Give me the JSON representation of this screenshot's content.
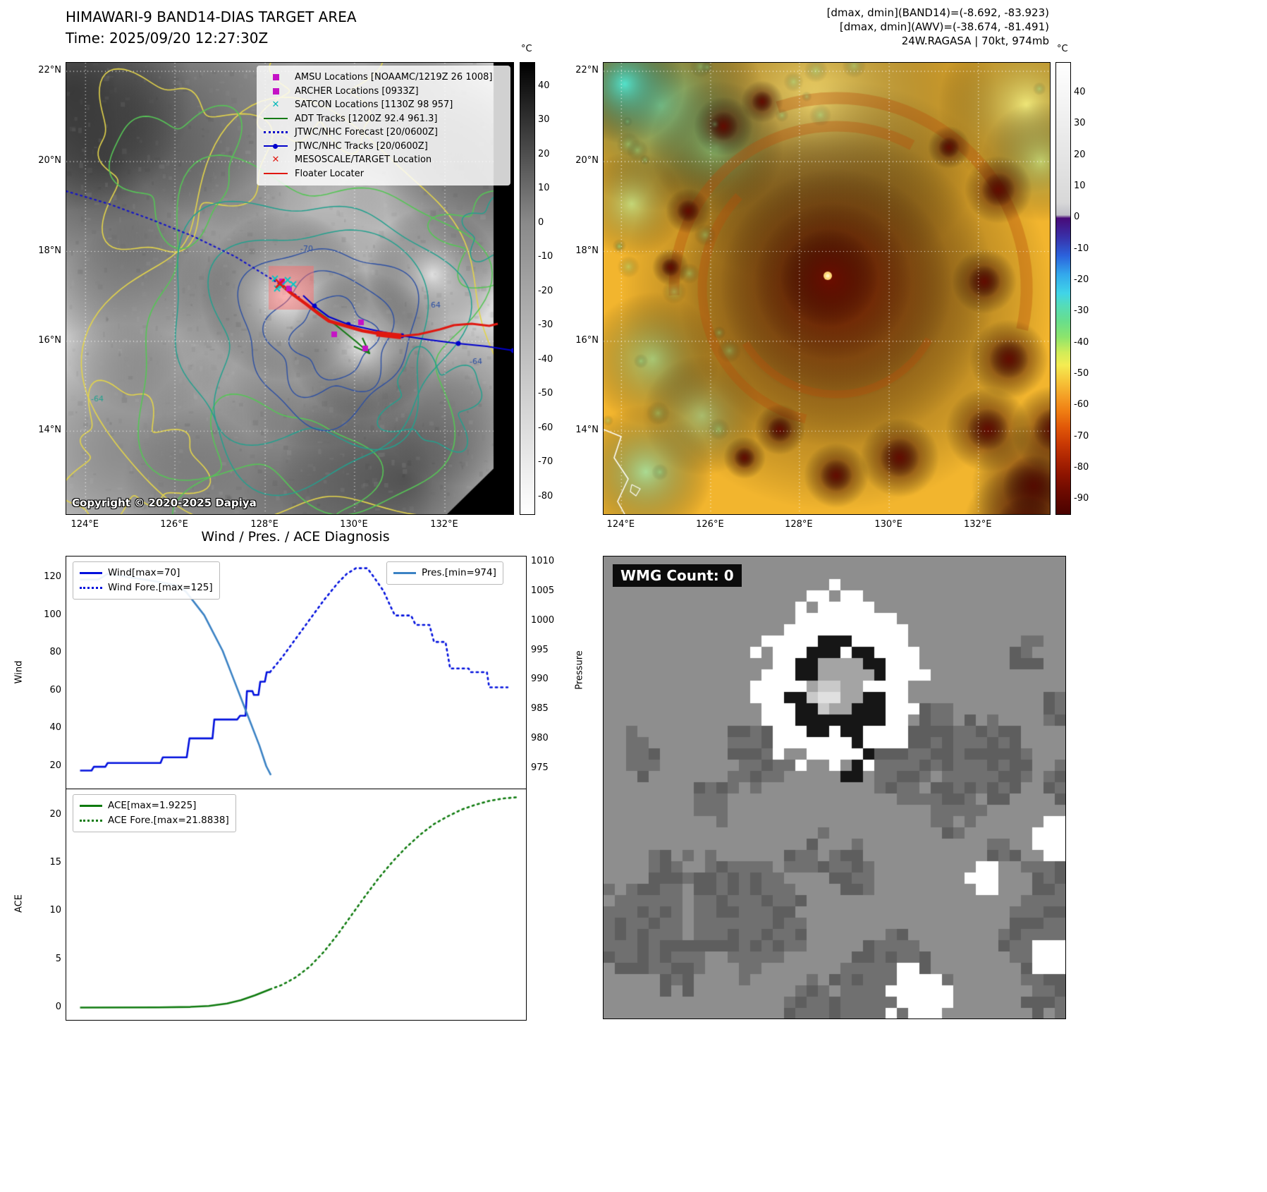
{
  "band14": {
    "title": "HIMAWARI-9 BAND14-DIAS TARGET AREA",
    "time_label": "Time: 2025/09/20 12:27:30Z",
    "copyright": "Copyright © 2020-2025 Dapiya",
    "colorbar": {
      "unit": "°C",
      "vmax": 47,
      "vmin": -85,
      "ticks": [
        40,
        30,
        20,
        10,
        0,
        -10,
        -20,
        -30,
        -40,
        -50,
        -60,
        -70,
        -80
      ],
      "stops": [
        [
          47,
          "#000000"
        ],
        [
          0,
          "#8a8a8a"
        ],
        [
          -85,
          "#ffffff"
        ]
      ]
    },
    "lat_labels": [
      "22°N",
      "20°N",
      "18°N",
      "16°N",
      "14°N"
    ],
    "lon_labels": [
      "124°E",
      "126°E",
      "128°E",
      "130°E",
      "132°E"
    ],
    "legend_items": [
      {
        "label": "AMSU Locations [NOAAMC/1219Z 26 1008]",
        "marker": "square",
        "color": "#c513c5"
      },
      {
        "label": "ARCHER Locations [0933Z]",
        "marker": "square",
        "color": "#c513c5"
      },
      {
        "label": "SATCON Locations [1130Z 98 957]",
        "marker": "x",
        "color": "#00b8b8"
      },
      {
        "label": "ADT Tracks [1200Z 92.4 961.3]",
        "marker": "line",
        "color": "#157a15"
      },
      {
        "label": "JTWC/NHC Forecast [20/0600Z]",
        "marker": "dotted-line",
        "color": "#0000cc"
      },
      {
        "label": "JTWC/NHC Tracks [20/0600Z]",
        "marker": "line-marker",
        "color": "#0000cc"
      },
      {
        "label": "MESOSCALE/TARGET Location",
        "marker": "x",
        "color": "#e01810"
      },
      {
        "label": "Floater Locater",
        "marker": "line",
        "color": "#e01810"
      }
    ],
    "contour_labels": [
      "-70",
      "64",
      "-64",
      "-64"
    ]
  },
  "awv": {
    "header_lines": [
      "[dmax, dmin](BAND14)=(-8.692, -83.923)",
      "[dmax, dmin](AWV)=(-38.674, -81.491)",
      "24W.RAGASA | 70kt, 974mb"
    ],
    "colorbar": {
      "unit": "°C",
      "vmax": 49.7,
      "vmin": -94.7,
      "ticks": [
        40,
        30,
        20,
        10,
        0,
        -10,
        -20,
        -30,
        -40,
        -50,
        -60,
        -70,
        -80,
        -90
      ],
      "stops": [
        [
          49.7,
          "#ffffff"
        ],
        [
          5,
          "#d8d8d8"
        ],
        [
          1,
          "#c0c0c8"
        ],
        [
          0,
          "#480a78"
        ],
        [
          -6,
          "#3930a8"
        ],
        [
          -12,
          "#2b62dc"
        ],
        [
          -18,
          "#33a8ec"
        ],
        [
          -24,
          "#40d4e8"
        ],
        [
          -28,
          "#55dcb8"
        ],
        [
          -33,
          "#68de8c"
        ],
        [
          -38,
          "#8ce46c"
        ],
        [
          -43,
          "#d2ec58"
        ],
        [
          -47,
          "#f4ec52"
        ],
        [
          -52,
          "#f6c63a"
        ],
        [
          -57,
          "#f4a026"
        ],
        [
          -62,
          "#ef7c12"
        ],
        [
          -67,
          "#e05708"
        ],
        [
          -72,
          "#ca3a04"
        ],
        [
          -77,
          "#ad2502"
        ],
        [
          -82,
          "#8e1400"
        ],
        [
          -87,
          "#700b00"
        ],
        [
          -92,
          "#570500"
        ],
        [
          -94.7,
          "#4b0300"
        ]
      ]
    },
    "lat_labels": [
      "22°N",
      "20°N",
      "18°N",
      "16°N",
      "14°N"
    ],
    "lon_labels": [
      "124°E",
      "126°E",
      "128°E",
      "130°E",
      "132°E"
    ]
  },
  "diagnosis": {
    "title": "Wind / Pres. / ACE Diagnosis"
  },
  "wmg": {
    "count_label": "WMG Count: 0"
  },
  "colors": {
    "wind": "#0010dd",
    "pressure": "#3b82c4",
    "ace": "#0e7a0e",
    "forecast_track": "#1515c8",
    "track": "#0000cc",
    "floater": "#e01810",
    "adt": "#157a15",
    "amsu": "#c513c5",
    "satcon": "#00c8c8",
    "target_box": "rgba(250,110,110,0.5)"
  },
  "chart_data": [
    {
      "type": "line",
      "title": "Wind / Pres. / ACE Diagnosis",
      "ylabel_left": "Wind",
      "ylabel_right": "Pressure",
      "ylim_left": [
        8.1,
        131.2
      ],
      "ylim_right": [
        971.6,
        1010.9
      ],
      "yticks_left": [
        120,
        100,
        80,
        60,
        40,
        20
      ],
      "yticks_right": [
        1010,
        1005,
        1000,
        995,
        990,
        985,
        980,
        975
      ],
      "series": [
        {
          "name": "Wind[max=70]",
          "axis": "left",
          "style": "solid",
          "color": "#0010dd",
          "points": [
            [
              0.03,
              18
            ],
            [
              0.055,
              18
            ],
            [
              0.06,
              20
            ],
            [
              0.085,
              20
            ],
            [
              0.09,
              22
            ],
            [
              0.15,
              22
            ],
            [
              0.205,
              22
            ],
            [
              0.21,
              25
            ],
            [
              0.262,
              25
            ],
            [
              0.268,
              35
            ],
            [
              0.318,
              35
            ],
            [
              0.322,
              45
            ],
            [
              0.372,
              45
            ],
            [
              0.378,
              47
            ],
            [
              0.39,
              47
            ],
            [
              0.393,
              60
            ],
            [
              0.405,
              60
            ],
            [
              0.408,
              58
            ],
            [
              0.418,
              58
            ],
            [
              0.422,
              65
            ],
            [
              0.432,
              65
            ],
            [
              0.436,
              70
            ],
            [
              0.443,
              70
            ]
          ]
        },
        {
          "name": "Wind Fore.[max=125]",
          "axis": "left",
          "style": "dotted",
          "color": "#0010dd",
          "points": [
            [
              0.443,
              70
            ],
            [
              0.47,
              78
            ],
            [
              0.5,
              88
            ],
            [
              0.53,
              98
            ],
            [
              0.56,
              108
            ],
            [
              0.59,
              117
            ],
            [
              0.61,
              122
            ],
            [
              0.63,
              125
            ],
            [
              0.655,
              125
            ],
            [
              0.67,
              120
            ],
            [
              0.69,
              113
            ],
            [
              0.705,
              105
            ],
            [
              0.715,
              100
            ],
            [
              0.75,
              100
            ],
            [
              0.76,
              95
            ],
            [
              0.79,
              95
            ],
            [
              0.8,
              86
            ],
            [
              0.825,
              86
            ],
            [
              0.835,
              72
            ],
            [
              0.875,
              72
            ],
            [
              0.88,
              70
            ],
            [
              0.915,
              70
            ],
            [
              0.92,
              62
            ],
            [
              0.96,
              62
            ]
          ]
        },
        {
          "name": "Pres.[min=974]",
          "axis": "right",
          "style": "solid",
          "color": "#3b82c4",
          "points": [
            [
              0.03,
              1007
            ],
            [
              0.07,
              1007
            ],
            [
              0.09,
              1008
            ],
            [
              0.13,
              1007.5
            ],
            [
              0.17,
              1007
            ],
            [
              0.21,
              1006.5
            ],
            [
              0.24,
              1006
            ],
            [
              0.26,
              1005
            ],
            [
              0.28,
              1003
            ],
            [
              0.3,
              1001
            ],
            [
              0.32,
              998
            ],
            [
              0.34,
              995
            ],
            [
              0.36,
              991
            ],
            [
              0.38,
              987
            ],
            [
              0.4,
              983
            ],
            [
              0.42,
              979
            ],
            [
              0.435,
              975.5
            ],
            [
              0.445,
              974
            ]
          ]
        }
      ]
    },
    {
      "type": "line",
      "ylabel_left": "ACE",
      "ylim_left": [
        -1.25,
        22.71
      ],
      "yticks_left": [
        20,
        15,
        10,
        5,
        0
      ],
      "series": [
        {
          "name": "ACE[max=1.9225]",
          "axis": "left",
          "style": "solid",
          "color": "#0e7a0e",
          "points": [
            [
              0.03,
              0.03
            ],
            [
              0.2,
              0.05
            ],
            [
              0.27,
              0.1
            ],
            [
              0.31,
              0.2
            ],
            [
              0.35,
              0.45
            ],
            [
              0.38,
              0.8
            ],
            [
              0.41,
              1.3
            ],
            [
              0.443,
              1.92
            ]
          ]
        },
        {
          "name": "ACE Fore.[max=21.8838]",
          "axis": "left",
          "style": "dotted",
          "color": "#0e7a0e",
          "points": [
            [
              0.443,
              1.92
            ],
            [
              0.47,
              2.4
            ],
            [
              0.5,
              3.2
            ],
            [
              0.53,
              4.3
            ],
            [
              0.56,
              5.8
            ],
            [
              0.59,
              7.6
            ],
            [
              0.62,
              9.6
            ],
            [
              0.65,
              11.6
            ],
            [
              0.68,
              13.5
            ],
            [
              0.71,
              15.2
            ],
            [
              0.74,
              16.7
            ],
            [
              0.77,
              18.0
            ],
            [
              0.8,
              19.1
            ],
            [
              0.83,
              19.9
            ],
            [
              0.86,
              20.6
            ],
            [
              0.89,
              21.1
            ],
            [
              0.92,
              21.5
            ],
            [
              0.95,
              21.75
            ],
            [
              0.985,
              21.9
            ]
          ]
        }
      ]
    }
  ]
}
